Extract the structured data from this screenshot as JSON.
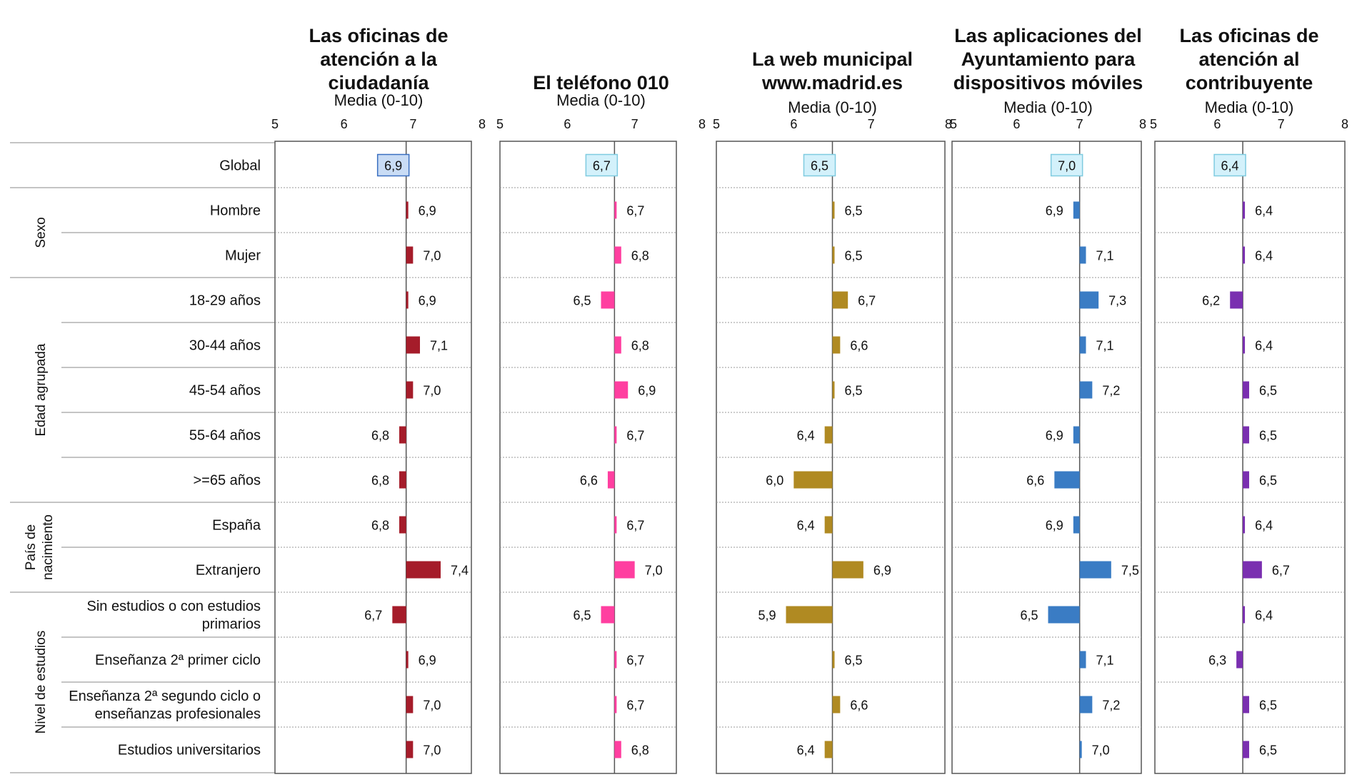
{
  "row_groups": [
    {
      "label": "",
      "rows": [
        "Global"
      ]
    },
    {
      "label": "Sexo",
      "rows": [
        "Hombre",
        "Mujer"
      ]
    },
    {
      "label": "Edad agrupada",
      "rows": [
        "18-29 años",
        "30-44 años",
        "45-54 años",
        "55-64 años",
        ">=65 años"
      ]
    },
    {
      "label": "País de nacimiento",
      "label_lines": [
        "País de",
        "nacimiento"
      ],
      "rows": [
        "España",
        "Extranjero"
      ]
    },
    {
      "label": "Nivel de estudios",
      "rows": [
        "Sin estudios o con estudios primarios",
        "Enseñanza 2ª primer ciclo",
        "Enseñanza 2ª segundo ciclo o enseñanzas profesionales",
        "Estudios universitarios"
      ]
    }
  ],
  "row_label_lines": [
    [
      "Global"
    ],
    [
      "Hombre"
    ],
    [
      "Mujer"
    ],
    [
      "18-29 años"
    ],
    [
      "30-44 años"
    ],
    [
      "45-54 años"
    ],
    [
      "55-64 años"
    ],
    [
      ">=65 años"
    ],
    [
      "España"
    ],
    [
      "Extranjero"
    ],
    [
      "Sin estudios o con estudios",
      "primarios"
    ],
    [
      "Enseñanza 2ª primer ciclo"
    ],
    [
      "Enseñanza 2ª segundo ciclo o",
      "enseñanzas profesionales"
    ],
    [
      "Estudios universitarios"
    ]
  ],
  "chart_data": [
    {
      "type": "bar",
      "title": "Las oficinas de atención a la ciudadanía",
      "title_lines": [
        "Las oficinas de",
        "atención a la",
        "ciudadanía"
      ],
      "axis_label": "Media (0-10)",
      "xlim": [
        5,
        8
      ],
      "ticks": [
        "5",
        "6",
        "7",
        "8"
      ],
      "reference": 6.9,
      "color": "#a51c2a",
      "global_badge_color": "#c9dcf5",
      "categories": [
        "Global",
        "Hombre",
        "Mujer",
        "18-29 años",
        "30-44 años",
        "45-54 años",
        "55-64 años",
        ">=65 años",
        "España",
        "Extranjero",
        "Sin estudios o con estudios primarios",
        "Enseñanza 2ª primer ciclo",
        "Enseñanza 2ª segundo ciclo o enseñanzas profesionales",
        "Estudios universitarios"
      ],
      "values": [
        6.9,
        6.9,
        7.0,
        6.9,
        7.1,
        7.0,
        6.8,
        6.8,
        6.8,
        7.4,
        6.7,
        6.9,
        7.0,
        7.0
      ],
      "labels": [
        "6,9",
        "6,9",
        "7,0",
        "6,9",
        "7,1",
        "7,0",
        "6,8",
        "6,8",
        "6,8",
        "7,4",
        "6,7",
        "6,9",
        "7,0",
        "7,0"
      ]
    },
    {
      "type": "bar",
      "title": "El teléfono 010",
      "title_lines": [
        "El teléfono 010"
      ],
      "axis_label": "Media (0-10)",
      "xlim": [
        5,
        8
      ],
      "ticks": [
        "5",
        "6",
        "7",
        "8"
      ],
      "reference": 6.7,
      "color": "#ff3fa0",
      "global_badge_color": "#d3f1fb",
      "categories": [
        "Global",
        "Hombre",
        "Mujer",
        "18-29 años",
        "30-44 años",
        "45-54 años",
        "55-64 años",
        ">=65 años",
        "España",
        "Extranjero",
        "Sin estudios o con estudios primarios",
        "Enseñanza 2ª primer ciclo",
        "Enseñanza 2ª segundo ciclo o enseñanzas profesionales",
        "Estudios universitarios"
      ],
      "values": [
        6.7,
        6.7,
        6.8,
        6.5,
        6.8,
        6.9,
        6.7,
        6.6,
        6.7,
        7.0,
        6.5,
        6.7,
        6.7,
        6.8
      ],
      "labels": [
        "6,7",
        "6,7",
        "6,8",
        "6,5",
        "6,8",
        "6,9",
        "6,7",
        "6,6",
        "6,7",
        "7,0",
        "6,5",
        "6,7",
        "6,7",
        "6,8"
      ]
    },
    {
      "type": "bar",
      "title": "La web municipal www.madrid.es",
      "title_lines": [
        "La web municipal",
        "www.madrid.es"
      ],
      "axis_label": "Media (0-10)",
      "xlim": [
        5,
        8
      ],
      "ticks": [
        "5",
        "6",
        "7",
        "8"
      ],
      "reference": 6.5,
      "color": "#b08a22",
      "global_badge_color": "#d3f1fb",
      "categories": [
        "Global",
        "Hombre",
        "Mujer",
        "18-29 años",
        "30-44 años",
        "45-54 años",
        "55-64 años",
        ">=65 años",
        "España",
        "Extranjero",
        "Sin estudios o con estudios primarios",
        "Enseñanza 2ª primer ciclo",
        "Enseñanza 2ª segundo ciclo o enseñanzas profesionales",
        "Estudios universitarios"
      ],
      "values": [
        6.5,
        6.5,
        6.5,
        6.7,
        6.6,
        6.5,
        6.4,
        6.0,
        6.4,
        6.9,
        5.9,
        6.5,
        6.6,
        6.4
      ],
      "labels": [
        "6,5",
        "6,5",
        "6,5",
        "6,7",
        "6,6",
        "6,5",
        "6,4",
        "6,0",
        "6,4",
        "6,9",
        "5,9",
        "6,5",
        "6,6",
        "6,4"
      ]
    },
    {
      "type": "bar",
      "title": "Las aplicaciones del Ayuntamiento para dispositivos móviles",
      "title_lines": [
        "Las aplicaciones del",
        "Ayuntamiento para",
        "dispositivos móviles"
      ],
      "axis_label": "Media (0-10)",
      "xlim": [
        5,
        8
      ],
      "ticks": [
        "5",
        "6",
        "7",
        "8"
      ],
      "reference": 7.0,
      "color": "#3a7cc4",
      "global_badge_color": "#d3f1fb",
      "categories": [
        "Global",
        "Hombre",
        "Mujer",
        "18-29 años",
        "30-44 años",
        "45-54 años",
        "55-64 años",
        ">=65 años",
        "España",
        "Extranjero",
        "Sin estudios o con estudios primarios",
        "Enseñanza 2ª primer ciclo",
        "Enseñanza 2ª segundo ciclo o enseñanzas profesionales",
        "Estudios universitarios"
      ],
      "values": [
        7.0,
        6.9,
        7.1,
        7.3,
        7.1,
        7.2,
        6.9,
        6.6,
        6.9,
        7.5,
        6.5,
        7.1,
        7.2,
        7.0
      ],
      "labels": [
        "7,0",
        "6,9",
        "7,1",
        "7,3",
        "7,1",
        "7,2",
        "6,9",
        "6,6",
        "6,9",
        "7,5",
        "6,5",
        "7,1",
        "7,2",
        "7,0"
      ]
    },
    {
      "type": "bar",
      "title": "Las oficinas de atención al contribuyente",
      "title_lines": [
        "Las oficinas de",
        "atención al",
        "contribuyente"
      ],
      "axis_label": "Media (0-10)",
      "xlim": [
        5,
        8
      ],
      "ticks": [
        "5",
        "6",
        "7",
        "8"
      ],
      "reference": 6.4,
      "color": "#7a2fb0",
      "global_badge_color": "#d3f1fb",
      "categories": [
        "Global",
        "Hombre",
        "Mujer",
        "18-29 años",
        "30-44 años",
        "45-54 años",
        "55-64 años",
        ">=65 años",
        "España",
        "Extranjero",
        "Sin estudios o con estudios primarios",
        "Enseñanza 2ª primer ciclo",
        "Enseñanza 2ª segundo ciclo o enseñanzas profesionales",
        "Estudios universitarios"
      ],
      "values": [
        6.4,
        6.4,
        6.4,
        6.2,
        6.4,
        6.5,
        6.5,
        6.5,
        6.4,
        6.7,
        6.4,
        6.3,
        6.5,
        6.5
      ],
      "labels": [
        "6,4",
        "6,4",
        "6,4",
        "6,2",
        "6,4",
        "6,5",
        "6,5",
        "6,5",
        "6,4",
        "6,7",
        "6,4",
        "6,3",
        "6,5",
        "6,5"
      ]
    }
  ]
}
